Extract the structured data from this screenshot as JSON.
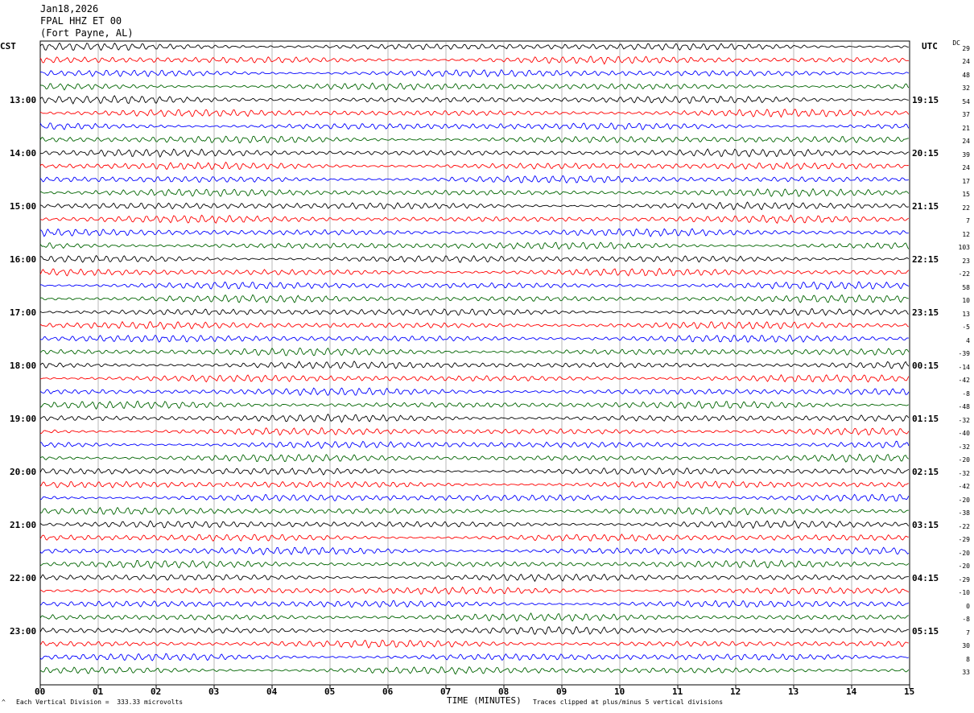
{
  "header": {
    "date": "Jan18,2026",
    "station": "FPAL HHZ ET 00",
    "location": "(Fort Payne, AL)"
  },
  "left_axis_title": "CST",
  "right_axis_title": "UTC",
  "dc_title": "DC",
  "chart_data": {
    "type": "line",
    "description_source": "helicorder seismogram",
    "xlabel": "TIME (MINUTES)",
    "xlim": [
      0,
      15
    ],
    "x_ticks": [
      "00",
      "01",
      "02",
      "03",
      "04",
      "05",
      "06",
      "07",
      "08",
      "09",
      "10",
      "11",
      "12",
      "13",
      "14",
      "15"
    ],
    "trace_count": 48,
    "trace_colors": [
      "#000000",
      "#ff0000",
      "#0000ff",
      "#006400"
    ],
    "left_hour_labels": [
      "13:00",
      "14:00",
      "15:00",
      "16:00",
      "17:00",
      "18:00",
      "19:00",
      "20:00",
      "21:00",
      "22:00",
      "23:00"
    ],
    "right_hour_labels": [
      "19:15",
      "20:15",
      "21:15",
      "22:15",
      "23:15",
      "00:15",
      "01:15",
      "02:15",
      "03:15",
      "04:15",
      "05:15"
    ],
    "dc_offsets": [
      29,
      24,
      48,
      32,
      54,
      37,
      21,
      24,
      39,
      24,
      17,
      15,
      22,
      7,
      12,
      103,
      23,
      -22,
      58,
      10,
      13,
      -5,
      4,
      -39,
      -14,
      -42,
      -8,
      -48,
      -32,
      -40,
      -32,
      -20,
      -32,
      -42,
      -20,
      -38,
      -22,
      -29,
      -20,
      -20,
      -29,
      -10,
      0,
      -8,
      7,
      30,
      8,
      33
    ],
    "grid": true
  },
  "footer": {
    "scale": "Each Vertical Division =  333.33 microvolts",
    "clip": "Traces clipped at plus/minus 5 vertical divisions",
    "marker": "^"
  }
}
